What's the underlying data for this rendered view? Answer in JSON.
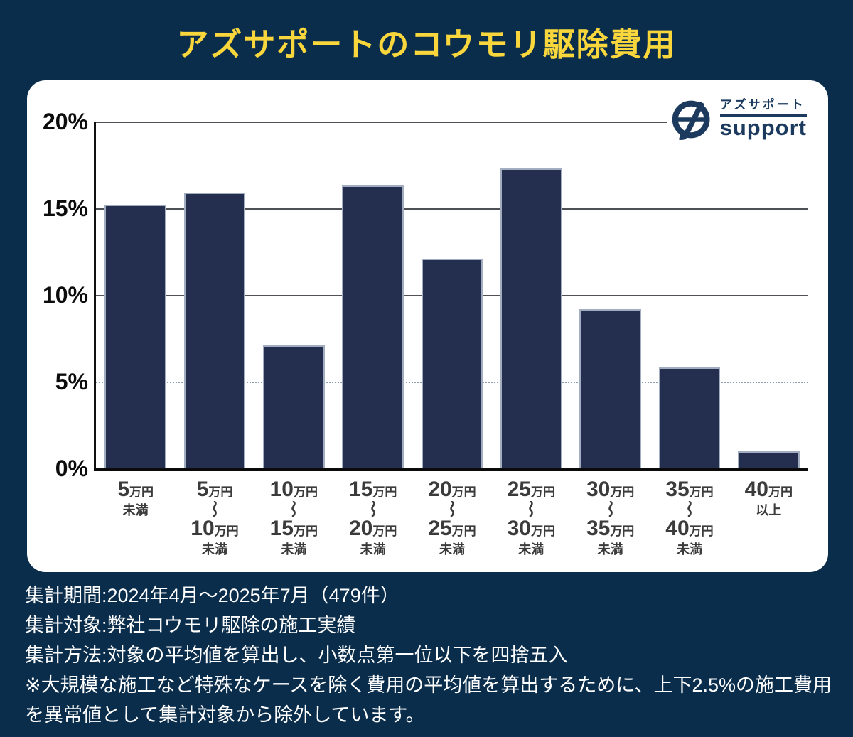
{
  "title": "アズサポートのコウモリ駆除費用",
  "logo": {
    "jp": "アズサポート",
    "en": "support",
    "monogram": "az-circle-monogram",
    "color": "#1b3a5e"
  },
  "colors": {
    "background_navy": "#0a2d4c",
    "accent_yellow": "#f8d63c",
    "bar_navy": "#242e4e",
    "card_white": "#ffffff"
  },
  "chart_data": {
    "type": "bar",
    "title": "アズサポートのコウモリ駆除費用",
    "xlabel": "",
    "ylabel": "",
    "ylim": [
      0,
      20
    ],
    "grid": "horizontal gridlines at 5% steps; 5% line dotted, others solid; legend none",
    "yticks": [
      {
        "label": "20%",
        "value": 20
      },
      {
        "label": "15%",
        "value": 15
      },
      {
        "label": "10%",
        "value": 10
      },
      {
        "label": "5%",
        "value": 5
      },
      {
        "label": "0%",
        "value": 0
      }
    ],
    "categories": [
      {
        "label": "5万円未満",
        "from_num": "5",
        "from_unit": "万円",
        "tilde": false,
        "to_num": "",
        "to_unit": "",
        "suffix": "未満"
      },
      {
        "label": "5万円～10万円未満",
        "from_num": "5",
        "from_unit": "万円",
        "tilde": true,
        "to_num": "10",
        "to_unit": "万円",
        "suffix": "未満"
      },
      {
        "label": "10万円～15万円未満",
        "from_num": "10",
        "from_unit": "万円",
        "tilde": true,
        "to_num": "15",
        "to_unit": "万円",
        "suffix": "未満"
      },
      {
        "label": "15万円～20万円未満",
        "from_num": "15",
        "from_unit": "万円",
        "tilde": true,
        "to_num": "20",
        "to_unit": "万円",
        "suffix": "未満"
      },
      {
        "label": "20万円～25万円未満",
        "from_num": "20",
        "from_unit": "万円",
        "tilde": true,
        "to_num": "25",
        "to_unit": "万円",
        "suffix": "未満"
      },
      {
        "label": "25万円～30万円未満",
        "from_num": "25",
        "from_unit": "万円",
        "tilde": true,
        "to_num": "30",
        "to_unit": "万円",
        "suffix": "未満"
      },
      {
        "label": "30万円～35万円未満",
        "from_num": "30",
        "from_unit": "万円",
        "tilde": true,
        "to_num": "35",
        "to_unit": "万円",
        "suffix": "未満"
      },
      {
        "label": "35万円～40万円未満",
        "from_num": "35",
        "from_unit": "万円",
        "tilde": true,
        "to_num": "40",
        "to_unit": "万円",
        "suffix": "未満"
      },
      {
        "label": "40万円以上",
        "from_num": "40",
        "from_unit": "万円",
        "tilde": false,
        "to_num": "",
        "to_unit": "",
        "suffix": "以上"
      }
    ],
    "values": [
      15.2,
      15.9,
      7.1,
      16.3,
      12.1,
      17.3,
      9.2,
      5.8,
      1.0
    ],
    "bar_color": "#242e4e"
  },
  "notes": [
    "集計期間:2024年4月～2025年7月（479件）",
    "集計対象:弊社コウモリ駆除の施工実績",
    "集計方法:対象の平均値を算出し、小数点第一位以下を四捨五入",
    "※大規模な施工など特殊なケースを除く費用の平均値を算出するために、上下2.5%の施工費用を異常値として集計対象から除外しています。"
  ]
}
